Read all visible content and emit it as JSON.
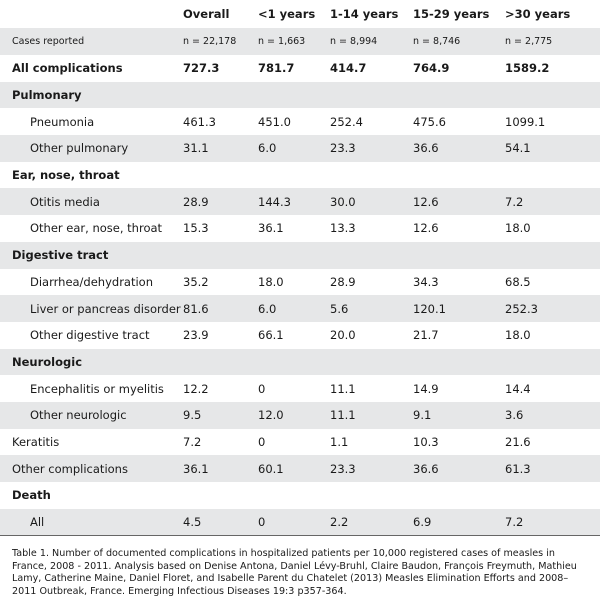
{
  "table": {
    "columns": [
      "Overall",
      "<1 years",
      "1-14 years",
      "15-29 years",
      ">30 years"
    ],
    "rows": [
      {
        "label": "Cases reported",
        "cells": [
          "n = 22,178",
          "n = 1,663",
          "n = 8,994",
          "n = 8,746",
          "n = 2,775"
        ]
      },
      {
        "label": "All complications",
        "cells": [
          "727.3",
          "781.7",
          "414.7",
          "764.9",
          "1589.2"
        ]
      },
      {
        "heading": "Pulmonary",
        "rows": [
          {
            "label": "Pneumonia",
            "cells": [
              "461.3",
              "451.0",
              "252.4",
              "475.6",
              "1099.1"
            ]
          },
          {
            "label": "Other pulmonary",
            "cells": [
              "31.1",
              "6.0",
              "23.3",
              "36.6",
              "54.1"
            ]
          }
        ]
      },
      {
        "heading": "Ear, nose, throat",
        "rows": [
          {
            "label": "Otitis media",
            "cells": [
              "28.9",
              "144.3",
              "30.0",
              "12.6",
              "7.2"
            ]
          },
          {
            "label": "Other ear, nose, throat",
            "cells": [
              "15.3",
              "36.1",
              "13.3",
              "12.6",
              "18.0"
            ]
          }
        ]
      },
      {
        "heading": "Digestive tract",
        "rows": [
          {
            "label": "Diarrhea/dehydration",
            "cells": [
              "35.2",
              "18.0",
              "28.9",
              "34.3",
              "68.5"
            ]
          },
          {
            "label": "Liver or pancreas disorder",
            "cells": [
              "81.6",
              "6.0",
              "5.6",
              "120.1",
              "252.3"
            ]
          },
          {
            "label": "Other digestive tract",
            "cells": [
              "23.9",
              "66.1",
              "20.0",
              "21.7",
              "18.0"
            ]
          }
        ]
      },
      {
        "heading": "Neurologic",
        "rows": [
          {
            "label": "Encephalitis or myelitis",
            "cells": [
              "12.2",
              "0",
              "11.1",
              "14.9",
              "14.4"
            ]
          },
          {
            "label": "Other neurologic",
            "cells": [
              "9.5",
              "12.0",
              "11.1",
              "9.1",
              "3.6"
            ]
          }
        ]
      },
      {
        "label": "Keratitis",
        "cells": [
          "7.2",
          "0",
          "1.1",
          "10.3",
          "21.6"
        ]
      },
      {
        "label": "Other complications",
        "cells": [
          "36.1",
          "60.1",
          "23.3",
          "36.6",
          "61.3"
        ]
      },
      {
        "heading": "Death",
        "rows": [
          {
            "label": "All",
            "cells": [
              "4.5",
              "0",
              "2.2",
              "6.9",
              "7.2"
            ]
          }
        ]
      }
    ]
  },
  "caption": "Table 1.  Number of documented complications in hospitalized patients per 10,000 registered cases of measles in France, 2008 - 2011.  Analysis based on Denise Antona, Daniel Lévy-Bruhl, Claire Baudon, François Freymuth, Mathieu Lamy, Catherine Maine, Daniel Floret, and Isabelle Parent du Chatelet (2013) Measles Elimination Efforts and 2008–2011 Outbreak, France. Emerging Infectious Diseases 19:3 p357-364."
}
